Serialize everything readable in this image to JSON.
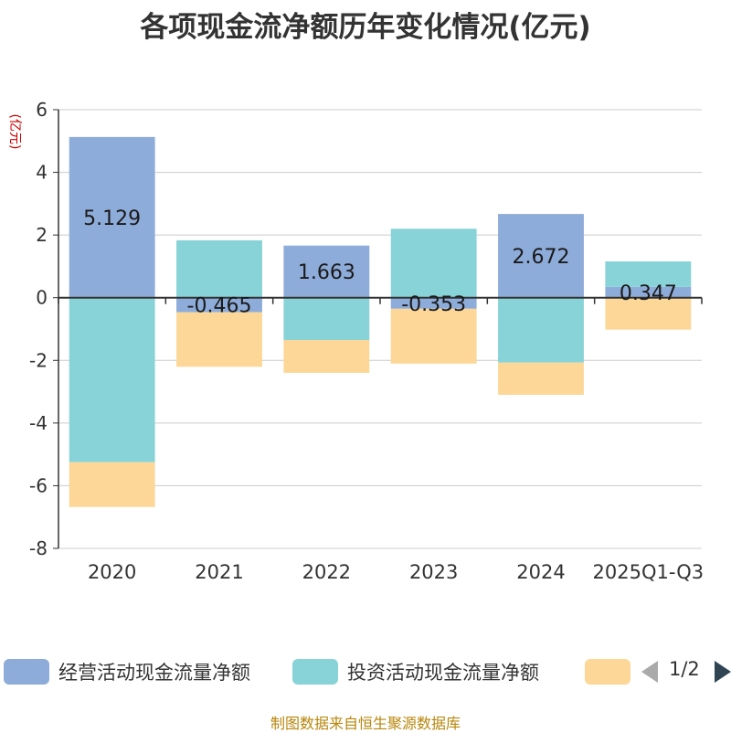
{
  "title": "各项现金流净额历年变化情况(亿元)",
  "unit_label": "(亿元)",
  "legend": {
    "items": [
      {
        "label": "经营活动现金流量净额",
        "color": "#8eacd9"
      },
      {
        "label": "投资活动现金流量净额",
        "color": "#87d3d8"
      },
      {
        "label": "",
        "color": "#fdd797"
      }
    ],
    "pager": "1/2",
    "prev_icon": "triangle-left-icon",
    "next_icon": "triangle-right-icon"
  },
  "footer": "制图数据来自恒生聚源数据库",
  "chart_data": {
    "type": "bar",
    "stacked": true,
    "title": "各项现金流净额历年变化情况(亿元)",
    "ylabel": "(亿元)",
    "xlabel": "",
    "ylim": [
      -8,
      6
    ],
    "yticks": [
      6,
      4,
      2,
      0,
      -2,
      -4,
      -6,
      -8
    ],
    "grid": true,
    "legend_position": "bottom",
    "categories": [
      "2020",
      "2021",
      "2022",
      "2023",
      "2024",
      "2025Q1-Q3"
    ],
    "series": [
      {
        "name": "经营活动现金流量净额",
        "color": "#8eacd9",
        "values": [
          5.129,
          -0.465,
          1.663,
          -0.353,
          2.672,
          0.347
        ],
        "labels": [
          "5.129",
          "-0.465",
          "1.663",
          "-0.353",
          "2.672",
          "0.347"
        ]
      },
      {
        "name": "投资活动现金流量净额",
        "color": "#87d3d8",
        "values": [
          -5.25,
          1.83,
          -1.35,
          2.2,
          -2.07,
          0.81
        ]
      },
      {
        "name": "",
        "color": "#fdd797",
        "values": [
          -1.43,
          -1.74,
          -1.05,
          -1.75,
          -1.03,
          -1.02
        ]
      }
    ]
  }
}
